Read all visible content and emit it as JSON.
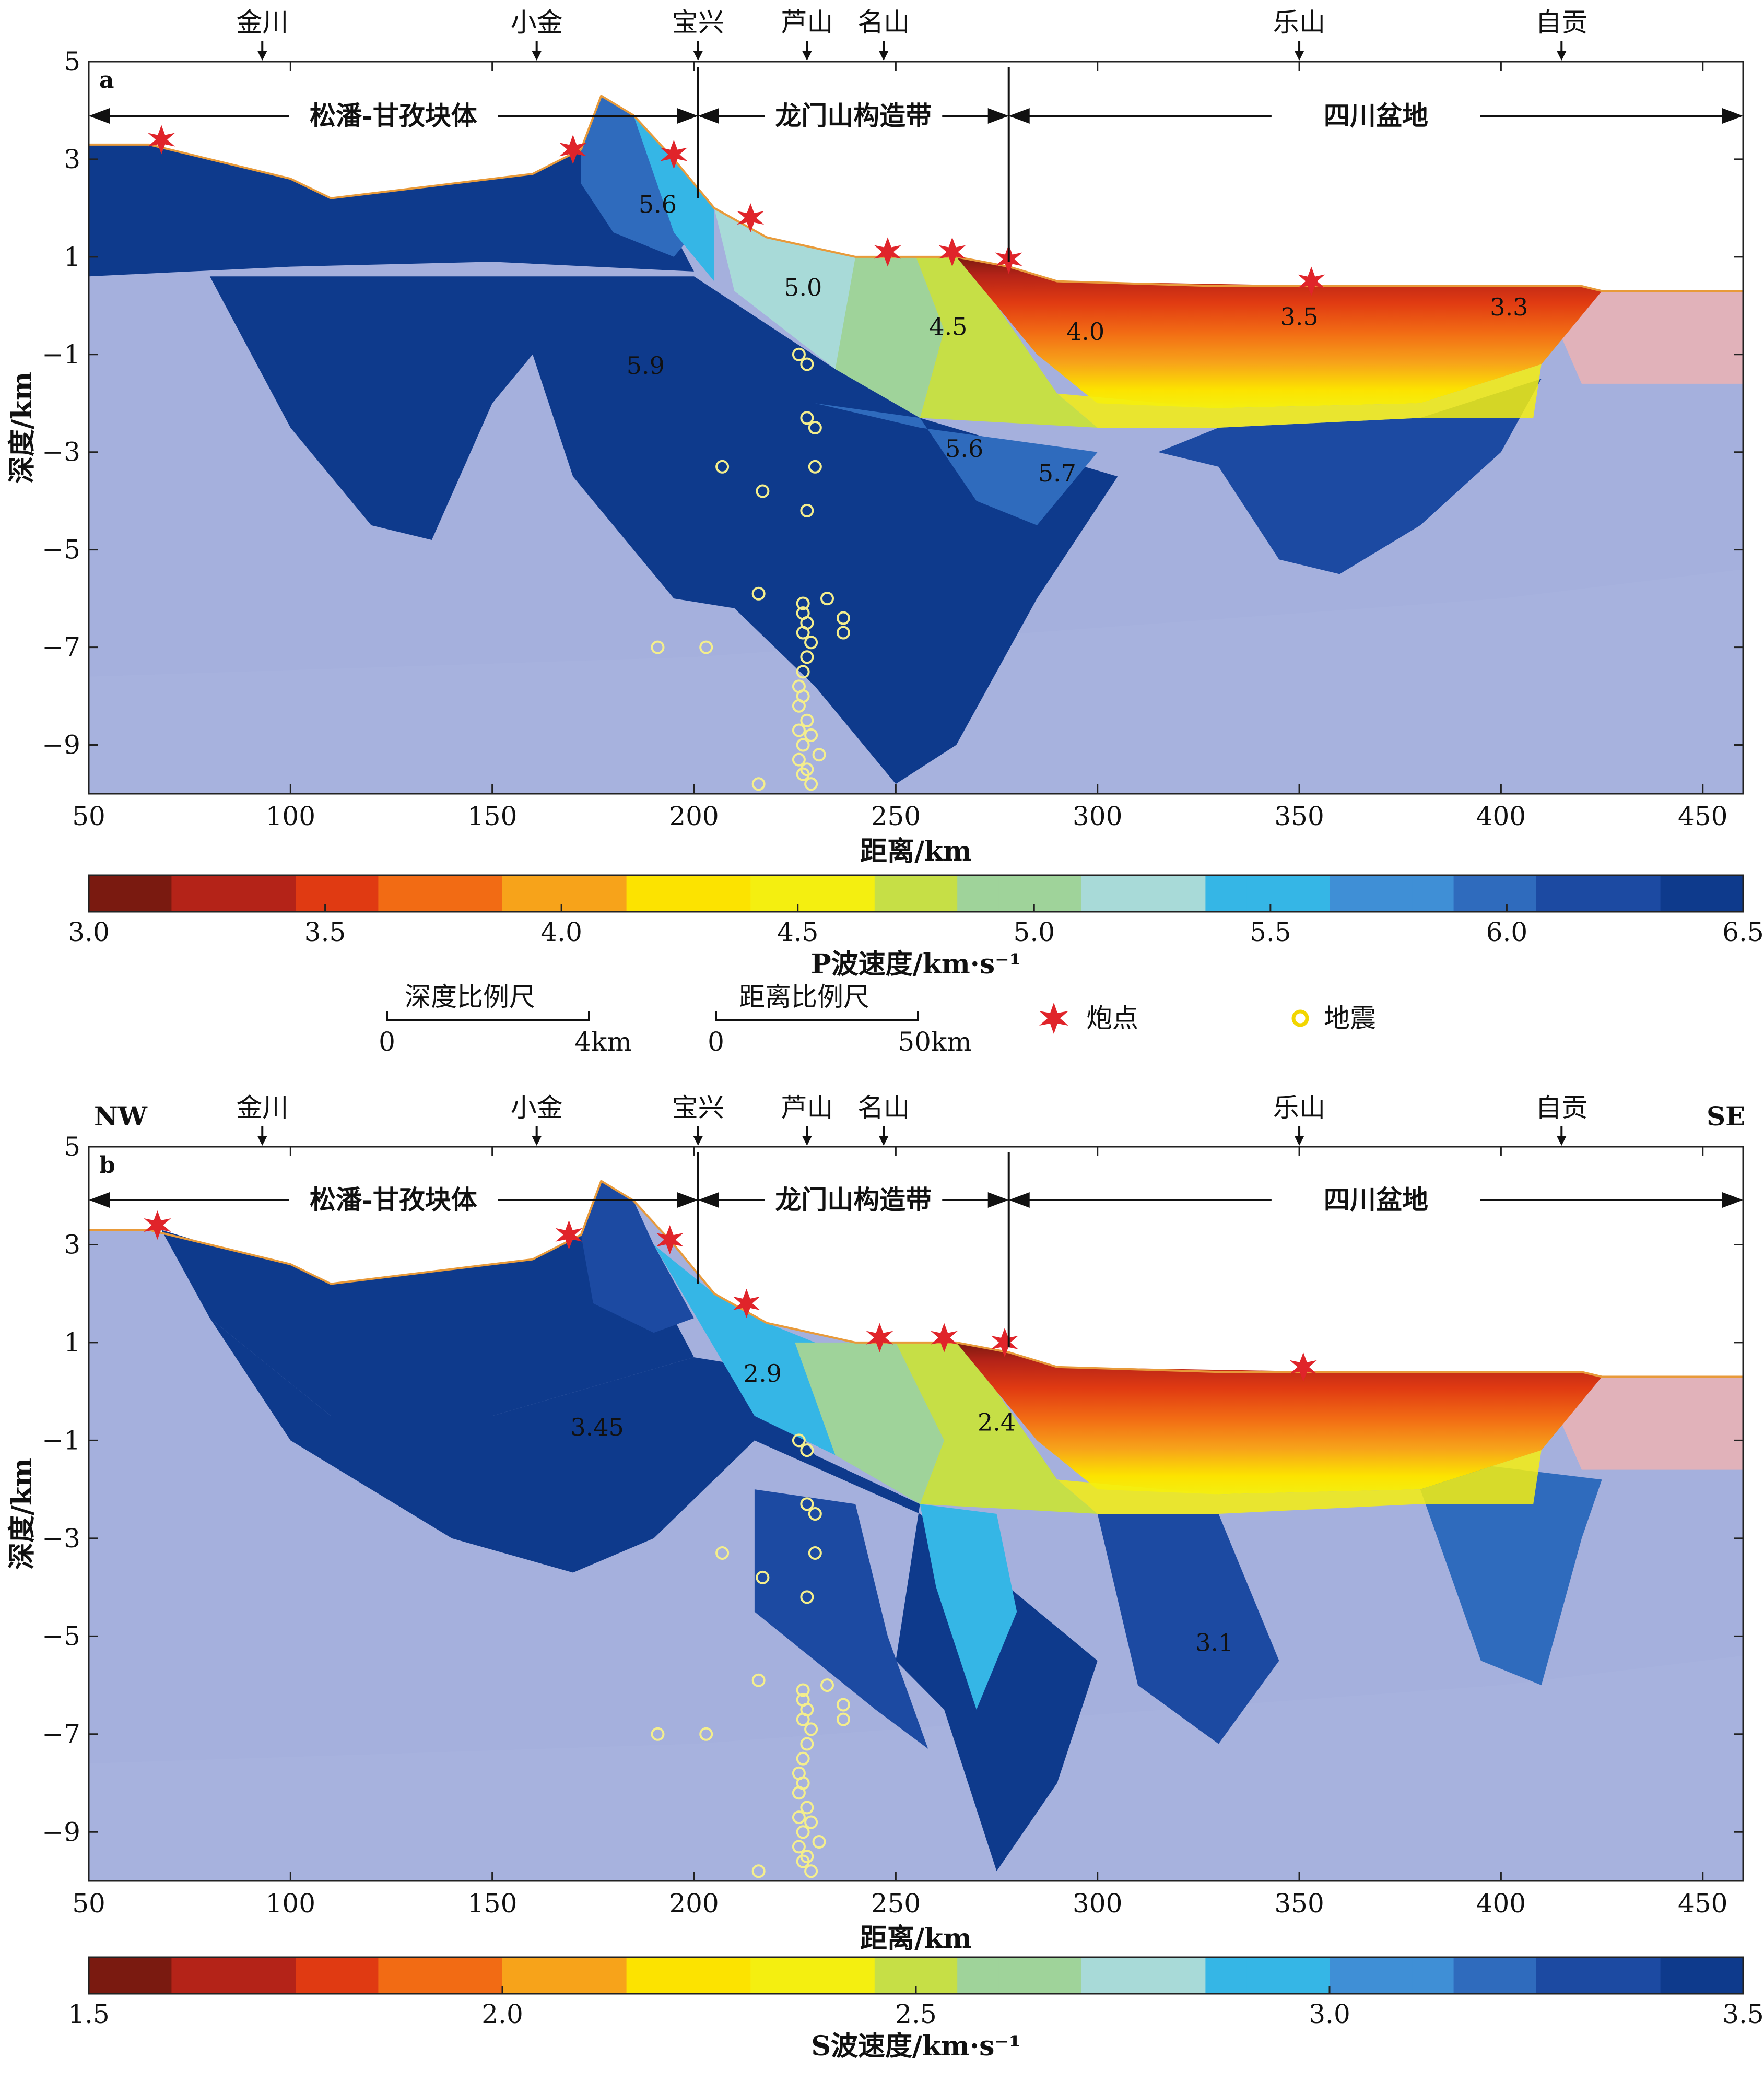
{
  "locations": [
    "金川",
    "小金",
    "宝兴",
    "芦山",
    "名山",
    "乐山",
    "自贡"
  ],
  "location_x": [
    93,
    161,
    201,
    228,
    247,
    350,
    415
  ],
  "regions": [
    "松潘-甘孜块体",
    "龙门山构造带",
    "四川盆地"
  ],
  "orientation": {
    "left": "NW",
    "right": "SE"
  },
  "legend": {
    "depth_scale": {
      "label": "深度比例尺",
      "start": "0",
      "end": "4km"
    },
    "distance_scale": {
      "label": "距离比例尺",
      "start": "0",
      "end": "50km"
    },
    "shot_label": "炮点",
    "quake_label": "地震"
  },
  "colors": {
    "palette": [
      "#7a1a10",
      "#b42318",
      "#e03a12",
      "#f26b14",
      "#f7a31a",
      "#fce300",
      "#f4ef10",
      "#c6df46",
      "#9fd39a",
      "#a8dad8",
      "#35b6e6",
      "#3f8fd6",
      "#2f6bbd",
      "#1c4aa2",
      "#0e3a8c"
    ],
    "background": "#a5b0dd",
    "shot": "#e0242a",
    "quake": "#f4ee8c",
    "topo_line": "#e89a3a"
  },
  "chart_data": [
    {
      "type": "heatmap",
      "panel": "a",
      "xlabel": "距离/km",
      "ylabel": "深度/km",
      "xlim": [
        50,
        460
      ],
      "ylim": [
        -10,
        5
      ],
      "xticks": [
        50,
        100,
        150,
        200,
        250,
        300,
        350,
        400,
        450
      ],
      "yticks": [
        5,
        3,
        1,
        -1,
        -3,
        -5,
        -7,
        -9
      ],
      "colorbar": {
        "label": "P波速度/km·s⁻¹",
        "min": 3.0,
        "max": 6.5,
        "ticks": [
          "3.0",
          "3.5",
          "4.0",
          "4.5",
          "5.0",
          "5.5",
          "6.0",
          "6.5"
        ]
      },
      "contour_labels": [
        {
          "text": "5.6",
          "x": 191,
          "y": 1.9
        },
        {
          "text": "5.0",
          "x": 227,
          "y": 0.2
        },
        {
          "text": "5.9",
          "x": 188,
          "y": -1.4
        },
        {
          "text": "4.5",
          "x": 263,
          "y": -0.6
        },
        {
          "text": "4.0",
          "x": 297,
          "y": -0.7
        },
        {
          "text": "3.5",
          "x": 350,
          "y": -0.4
        },
        {
          "text": "3.3",
          "x": 402,
          "y": -0.2
        },
        {
          "text": "5.6",
          "x": 267,
          "y": -3.1
        },
        {
          "text": "5.7",
          "x": 290,
          "y": -3.6
        }
      ],
      "shots": [
        [
          68,
          3.4
        ],
        [
          170,
          3.2
        ],
        [
          195,
          3.1
        ],
        [
          214,
          1.8
        ],
        [
          248,
          1.1
        ],
        [
          264,
          1.1
        ],
        [
          278,
          0.95
        ],
        [
          353,
          0.5
        ]
      ],
      "quakes": [
        [
          226,
          -1.0
        ],
        [
          228,
          -1.2
        ],
        [
          228,
          -2.3
        ],
        [
          230,
          -2.5
        ],
        [
          207,
          -3.3
        ],
        [
          230,
          -3.3
        ],
        [
          217,
          -3.8
        ],
        [
          228,
          -4.2
        ],
        [
          216,
          -5.9
        ],
        [
          227,
          -6.1
        ],
        [
          233,
          -6.0
        ],
        [
          227,
          -6.3
        ],
        [
          228,
          -6.5
        ],
        [
          237,
          -6.4
        ],
        [
          237,
          -6.7
        ],
        [
          227,
          -6.7
        ],
        [
          229,
          -6.9
        ],
        [
          191,
          -7.0
        ],
        [
          203,
          -7.0
        ],
        [
          228,
          -7.2
        ],
        [
          227,
          -7.5
        ],
        [
          226,
          -7.8
        ],
        [
          227,
          -8.0
        ],
        [
          226,
          -8.2
        ],
        [
          228,
          -8.5
        ],
        [
          226,
          -8.7
        ],
        [
          229,
          -8.8
        ],
        [
          227,
          -9.0
        ],
        [
          231,
          -9.2
        ],
        [
          226,
          -9.3
        ],
        [
          228,
          -9.5
        ],
        [
          227,
          -9.6
        ],
        [
          229,
          -9.8
        ],
        [
          216,
          -9.8
        ]
      ]
    },
    {
      "type": "heatmap",
      "panel": "b",
      "xlabel": "距离/km",
      "ylabel": "深度/km",
      "xlim": [
        50,
        460
      ],
      "ylim": [
        -10,
        5
      ],
      "xticks": [
        50,
        100,
        150,
        200,
        250,
        300,
        350,
        400,
        450
      ],
      "yticks": [
        5,
        3,
        1,
        -1,
        -3,
        -5,
        -7,
        -9
      ],
      "colorbar": {
        "label": "S波速度/km·s⁻¹",
        "min": 1.5,
        "max": 3.5,
        "ticks": [
          "1.5",
          "2.0",
          "2.5",
          "3.0",
          "3.5"
        ]
      },
      "contour_labels": [
        {
          "text": "2.9",
          "x": 217,
          "y": 0.2
        },
        {
          "text": "3.45",
          "x": 176,
          "y": -0.9
        },
        {
          "text": "2.4",
          "x": 275,
          "y": -0.8
        },
        {
          "text": "3.1",
          "x": 329,
          "y": -5.3
        }
      ],
      "shots": [
        [
          67,
          3.4
        ],
        [
          169,
          3.2
        ],
        [
          194,
          3.1
        ],
        [
          213,
          1.8
        ],
        [
          246,
          1.1
        ],
        [
          262,
          1.1
        ],
        [
          277,
          1.0
        ],
        [
          351,
          0.5
        ]
      ],
      "quakes": [
        [
          226,
          -1.0
        ],
        [
          228,
          -1.2
        ],
        [
          228,
          -2.3
        ],
        [
          230,
          -2.5
        ],
        [
          207,
          -3.3
        ],
        [
          230,
          -3.3
        ],
        [
          217,
          -3.8
        ],
        [
          228,
          -4.2
        ],
        [
          216,
          -5.9
        ],
        [
          227,
          -6.1
        ],
        [
          233,
          -6.0
        ],
        [
          227,
          -6.3
        ],
        [
          228,
          -6.5
        ],
        [
          237,
          -6.4
        ],
        [
          237,
          -6.7
        ],
        [
          227,
          -6.7
        ],
        [
          229,
          -6.9
        ],
        [
          191,
          -7.0
        ],
        [
          203,
          -7.0
        ],
        [
          228,
          -7.2
        ],
        [
          227,
          -7.5
        ],
        [
          226,
          -7.8
        ],
        [
          227,
          -8.0
        ],
        [
          226,
          -8.2
        ],
        [
          228,
          -8.5
        ],
        [
          226,
          -8.7
        ],
        [
          229,
          -8.8
        ],
        [
          227,
          -9.0
        ],
        [
          231,
          -9.2
        ],
        [
          226,
          -9.3
        ],
        [
          228,
          -9.5
        ],
        [
          227,
          -9.6
        ],
        [
          229,
          -9.8
        ],
        [
          216,
          -9.8
        ]
      ]
    }
  ]
}
